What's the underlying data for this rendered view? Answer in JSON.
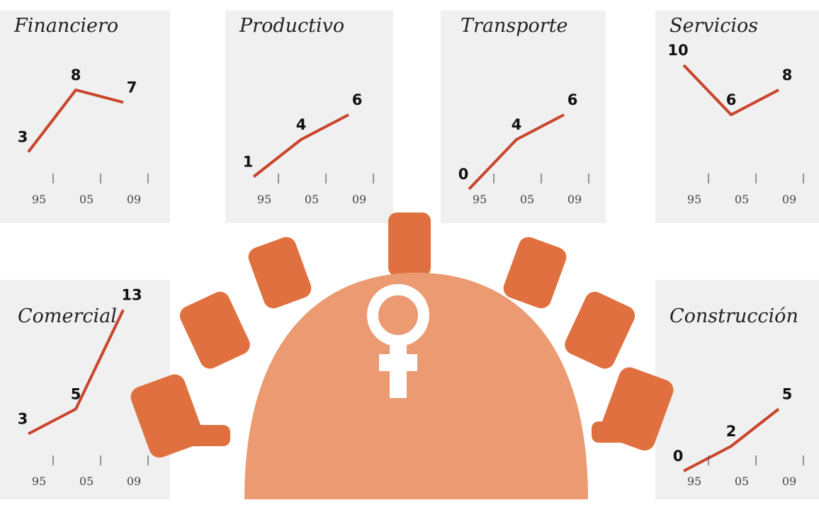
{
  "chart_data": [
    {
      "type": "line",
      "title": "Financiero",
      "categories": [
        "95",
        "05",
        "09"
      ],
      "values": [
        3,
        8,
        7
      ],
      "color": "#c8452c",
      "ylim": [
        0,
        14
      ]
    },
    {
      "type": "line",
      "title": "Productivo",
      "categories": [
        "95",
        "05",
        "09"
      ],
      "values": [
        1,
        4,
        6
      ],
      "color": "#c8452c",
      "ylim": [
        0,
        14
      ]
    },
    {
      "type": "line",
      "title": "Transporte",
      "categories": [
        "95",
        "05",
        "09"
      ],
      "values": [
        0,
        4,
        6
      ],
      "color": "#c8452c",
      "ylim": [
        0,
        14
      ]
    },
    {
      "type": "line",
      "title": "Servicios",
      "categories": [
        "95",
        "05",
        "09"
      ],
      "values": [
        10,
        6,
        8
      ],
      "color": "#c8452c",
      "ylim": [
        0,
        14
      ]
    },
    {
      "type": "line",
      "title": "Comercial",
      "categories": [
        "95",
        "05",
        "09"
      ],
      "values": [
        3,
        5,
        13
      ],
      "color": "#c8452c",
      "ylim": [
        0,
        14
      ]
    },
    {
      "type": "line",
      "title": "Construcción",
      "categories": [
        "95",
        "05",
        "09"
      ],
      "values": [
        0,
        2,
        5
      ],
      "color": "#c8452c",
      "ylim": [
        0,
        14
      ]
    }
  ]
}
